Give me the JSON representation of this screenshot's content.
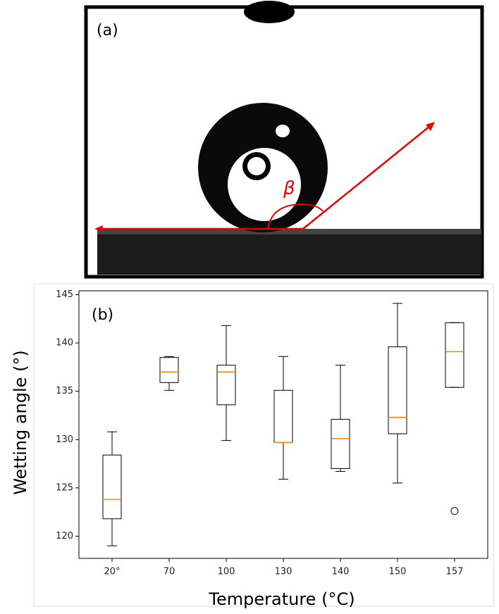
{
  "panel_a": {
    "label": "(a)",
    "angle_label": "β"
  },
  "chart_data": {
    "type": "box",
    "panel_label": "(b)",
    "x_label": "Temperature (°C)",
    "y_label": "Wetting angle (°)",
    "categories": [
      "20°",
      "70",
      "100",
      "130",
      "140",
      "150",
      "157"
    ],
    "boxes": [
      {
        "min": 119,
        "q1": 121.8,
        "median": 123.8,
        "q3": 128.4,
        "max": 130.8,
        "outliers": []
      },
      {
        "min": 135.1,
        "q1": 135.9,
        "median": 137,
        "q3": 138.5,
        "max": 138.6,
        "outliers": []
      },
      {
        "min": 129.9,
        "q1": 133.6,
        "median": 137,
        "q3": 137.7,
        "max": 141.8,
        "outliers": []
      },
      {
        "min": 125.9,
        "q1": 129.7,
        "median": 129.7,
        "q3": 135.1,
        "max": 138.6,
        "outliers": []
      },
      {
        "min": 126.7,
        "q1": 127,
        "median": 130.1,
        "q3": 132.1,
        "max": 137.7,
        "outliers": []
      },
      {
        "min": 125.5,
        "q1": 130.6,
        "median": 132.3,
        "q3": 139.6,
        "max": 144.1,
        "outliers": []
      },
      {
        "min": 135.4,
        "q1": 135.4,
        "median": 139.1,
        "q3": 142.1,
        "max": 142.1,
        "outliers": [
          122.6
        ]
      }
    ],
    "box_color": "#000000",
    "median_color": "#ff7f0e",
    "ylim": [
      117.7,
      145.4
    ],
    "yticks": [
      120,
      125,
      130,
      135,
      140,
      145
    ]
  }
}
